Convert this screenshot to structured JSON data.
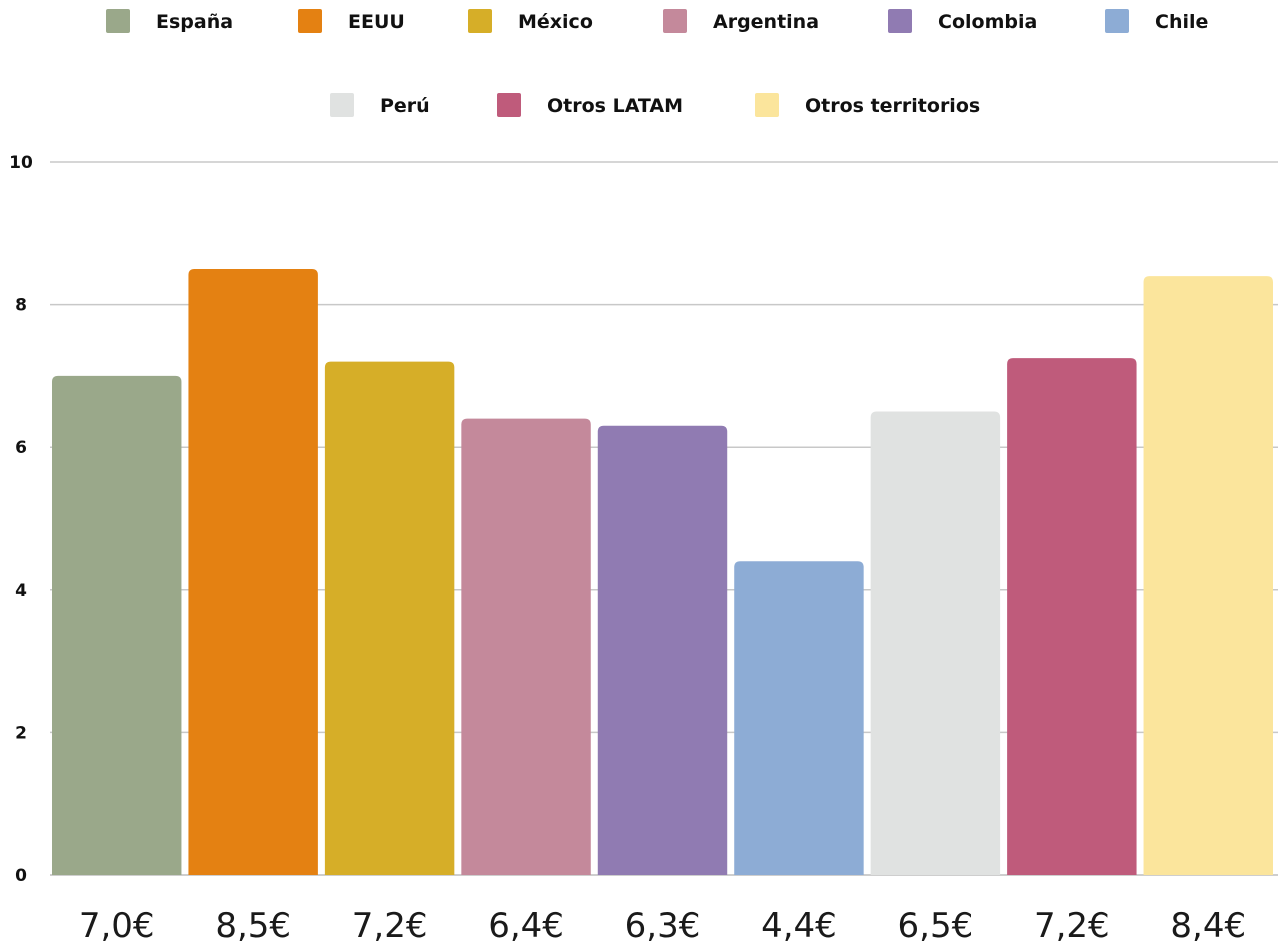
{
  "chart_data": {
    "type": "bar",
    "title": "",
    "xlabel": "",
    "ylabel": "",
    "ylim": [
      0,
      10
    ],
    "yticks": [
      0,
      2,
      4,
      6,
      8,
      10
    ],
    "grid": true,
    "legend_position": "top",
    "series": [
      {
        "name": "España",
        "value": 7.0,
        "label": "7,0€",
        "color": "#9aa88a"
      },
      {
        "name": "EEUU",
        "value": 8.5,
        "label": "8,5€",
        "color": "#e48112"
      },
      {
        "name": "México",
        "value": 7.2,
        "label": "7,2€",
        "color": "#d6ae28"
      },
      {
        "name": "Argentina",
        "value": 6.4,
        "label": "6,4€",
        "color": "#c4899b"
      },
      {
        "name": "Colombia",
        "value": 6.3,
        "label": "6,3€",
        "color": "#907bb2"
      },
      {
        "name": "Chile",
        "value": 4.4,
        "label": "4,4€",
        "color": "#8dacd5"
      },
      {
        "name": "Perú",
        "value": 6.5,
        "label": "6,5€",
        "color": "#e0e2e1"
      },
      {
        "name": "Otros LATAM",
        "value": 7.25,
        "label": "7,2€",
        "color": "#bf5b7b"
      },
      {
        "name": "Otros territorios",
        "value": 8.4,
        "label": "8,4€",
        "color": "#fbe59c"
      }
    ]
  }
}
